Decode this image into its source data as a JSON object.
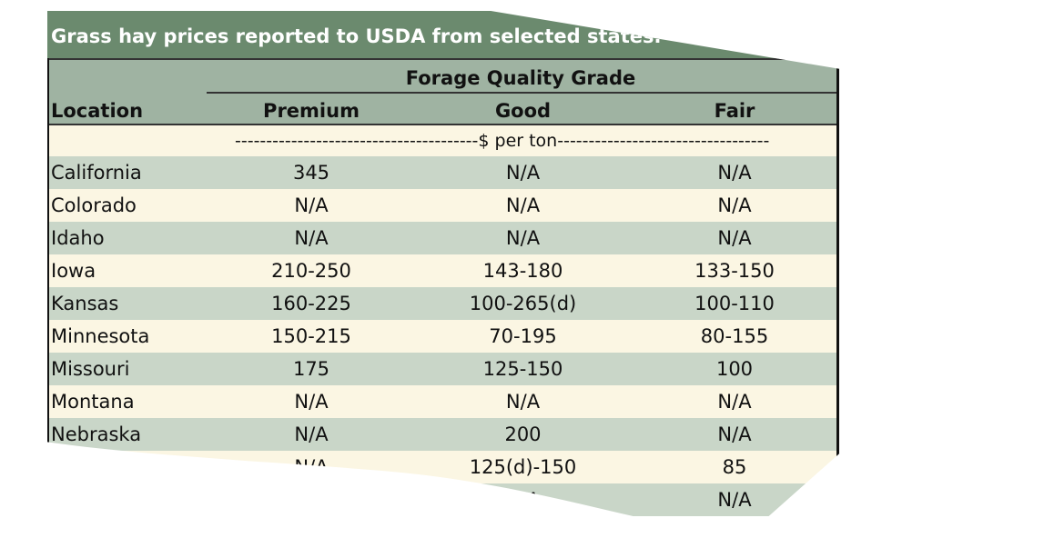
{
  "title": "Grass hay prices reported to USDA from selected states.",
  "header": {
    "location": "Location",
    "group": "Forage Quality Grade",
    "grades": [
      "Premium",
      "Good",
      "Fair"
    ]
  },
  "unit_row": "---------------------------------------$ per ton----------------------------------",
  "rows": [
    {
      "location": "California",
      "premium": "345",
      "good": "N/A",
      "fair": "N/A"
    },
    {
      "location": "Colorado",
      "premium": "N/A",
      "good": "N/A",
      "fair": "N/A"
    },
    {
      "location": "Idaho",
      "premium": "N/A",
      "good": "N/A",
      "fair": "N/A"
    },
    {
      "location": "Iowa",
      "premium": "210-250",
      "good": "143-180",
      "fair": "133-150"
    },
    {
      "location": "Kansas",
      "premium": "160-225",
      "good": "100-265(d)",
      "fair": "100-110"
    },
    {
      "location": "Minnesota",
      "premium": "150-215",
      "good": "70-195",
      "fair": "80-155"
    },
    {
      "location": "Missouri",
      "premium": "175",
      "good": "125-150",
      "fair": "100"
    },
    {
      "location": "Montana",
      "premium": "N/A",
      "good": "N/A",
      "fair": "N/A"
    },
    {
      "location": "Nebraska",
      "premium": "N/A",
      "good": "200",
      "fair": "N/A"
    },
    {
      "location": "",
      "premium": "N/A",
      "good": "125(d)-150",
      "fair": "85"
    },
    {
      "location": "",
      "premium": "",
      "good": "N/A",
      "fair": "N/A"
    }
  ],
  "colors": {
    "title_bg": "#6b8a6e",
    "header_bg": "#9fb3a2",
    "row_green": "#c9d6c8",
    "row_cream": "#fbf6e3"
  }
}
